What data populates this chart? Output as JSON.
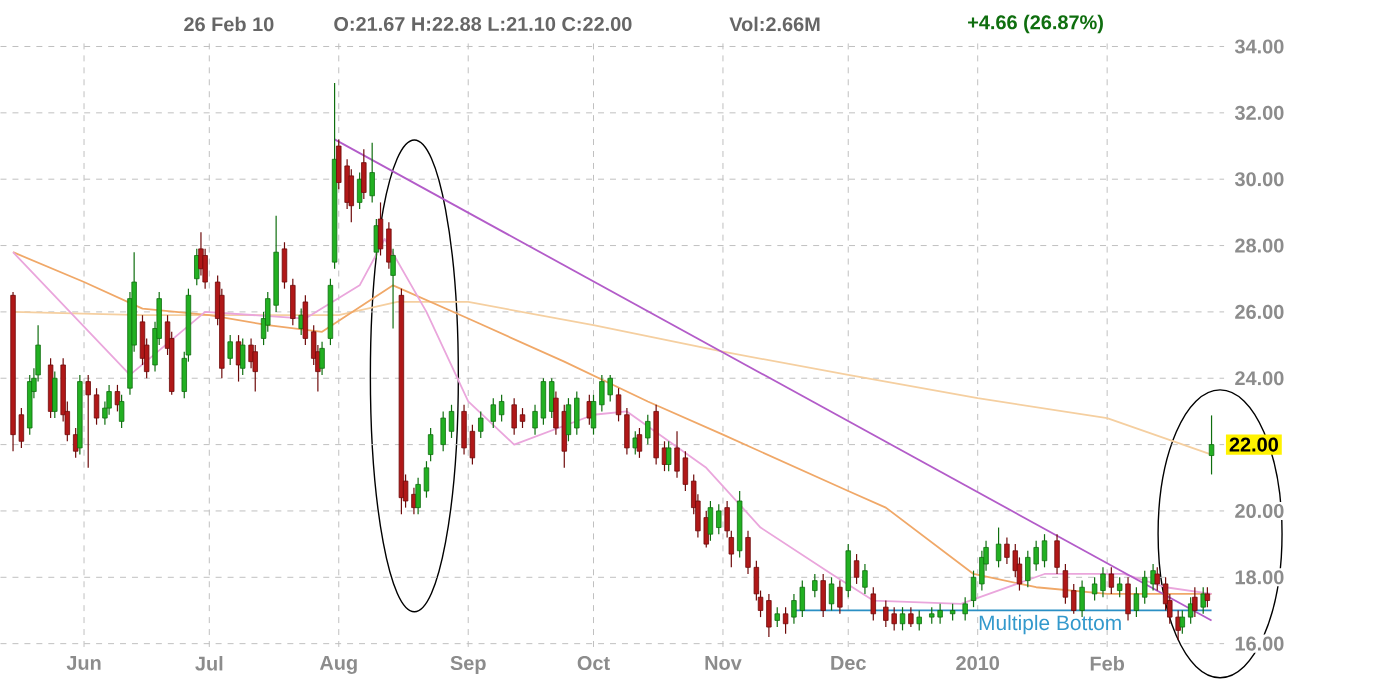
{
  "chart_data": {
    "type": "candlestick",
    "title": "26 Feb 10",
    "annotations": [
      "O:21.67 H:22.88 L:21.10 C:22.00",
      "Vol:2.66M",
      "+4.66 (26.87%)",
      {
        "text": "22.00",
        "x": "2010-02-26",
        "y": 22.0
      },
      {
        "text": "Multiple Bottom",
        "x": "2010-01-01",
        "y": 17.0
      }
    ],
    "x": [
      "2009-05-15",
      "2009-05-17",
      "2009-05-19",
      "2009-05-20",
      "2009-05-21",
      "2009-05-24",
      "2009-05-25",
      "2009-05-27",
      "2009-05-28",
      "2009-05-30",
      "2009-05-31",
      "2009-06-02",
      "2009-06-04",
      "2009-06-06",
      "2009-06-07",
      "2009-06-09",
      "2009-06-10",
      "2009-06-12",
      "2009-06-13",
      "2009-06-15",
      "2009-06-16",
      "2009-06-18",
      "2009-06-19",
      "2009-06-21",
      "2009-06-22",
      "2009-06-25",
      "2009-06-26",
      "2009-06-28",
      "2009-06-29",
      "2009-06-30",
      "2009-07-03",
      "2009-07-04",
      "2009-07-06",
      "2009-07-08",
      "2009-07-09",
      "2009-07-11",
      "2009-07-12",
      "2009-07-14",
      "2009-07-15",
      "2009-07-17",
      "2009-07-19",
      "2009-07-21",
      "2009-07-23",
      "2009-07-24",
      "2009-07-26",
      "2009-07-27",
      "2009-07-28",
      "2009-07-30",
      "2009-07-31",
      "2009-08-01",
      "2009-08-03",
      "2009-08-04",
      "2009-08-06",
      "2009-08-07",
      "2009-08-09",
      "2009-08-10",
      "2009-08-11",
      "2009-08-13",
      "2009-08-14",
      "2009-08-16",
      "2009-08-17",
      "2009-08-19",
      "2009-08-20",
      "2009-08-22",
      "2009-08-23",
      "2009-08-26",
      "2009-08-28",
      "2009-08-31",
      "2009-09-02",
      "2009-09-04",
      "2009-09-07",
      "2009-09-09",
      "2009-09-12",
      "2009-09-14",
      "2009-09-17",
      "2009-09-19",
      "2009-09-21",
      "2009-09-22",
      "2009-09-24",
      "2009-09-25",
      "2009-09-27",
      "2009-09-30",
      "2009-10-01",
      "2009-10-03",
      "2009-10-05",
      "2009-10-07",
      "2009-10-09",
      "2009-10-11",
      "2009-10-12",
      "2009-10-14",
      "2009-10-16",
      "2009-10-18",
      "2009-10-19",
      "2009-10-21",
      "2009-10-23",
      "2009-10-25",
      "2009-10-26",
      "2009-10-28",
      "2009-10-29",
      "2009-10-31",
      "2009-11-02",
      "2009-11-03",
      "2009-11-05",
      "2009-11-07",
      "2009-11-09",
      "2009-11-10",
      "2009-11-12",
      "2009-11-14",
      "2009-11-16",
      "2009-11-18",
      "2009-11-20",
      "2009-11-23",
      "2009-11-25",
      "2009-11-27",
      "2009-11-29",
      "2009-12-01",
      "2009-12-03",
      "2009-12-05",
      "2009-12-07",
      "2009-12-10",
      "2009-12-12",
      "2009-12-14",
      "2009-12-16",
      "2009-12-18",
      "2009-12-21",
      "2009-12-23",
      "2009-12-26",
      "2009-12-29",
      "2009-12-31",
      "2010-01-02",
      "2010-01-03",
      "2010-01-06",
      "2010-01-08",
      "2010-01-10",
      "2010-01-11",
      "2010-01-13",
      "2010-01-15",
      "2010-01-17",
      "2010-01-20",
      "2010-01-22",
      "2010-01-24",
      "2010-01-26",
      "2010-01-29",
      "2010-01-31",
      "2010-02-02",
      "2010-02-04",
      "2010-02-06",
      "2010-02-08",
      "2010-02-10",
      "2010-02-12",
      "2010-02-13",
      "2010-02-15",
      "2010-02-16",
      "2010-02-18",
      "2010-02-19",
      "2010-02-21",
      "2010-02-22",
      "2010-02-24",
      "2010-02-25",
      "2010-02-26"
    ],
    "ohlc": [
      [
        26.5,
        26.6,
        21.8,
        22.3
      ],
      [
        22.9,
        23.1,
        21.9,
        22.1
      ],
      [
        22.5,
        24.1,
        22.3,
        23.9
      ],
      [
        23.6,
        24.3,
        23.4,
        24.0
      ],
      [
        24.1,
        25.6,
        23.9,
        25.0
      ],
      [
        24.4,
        24.6,
        22.8,
        23.0
      ],
      [
        23.0,
        24.2,
        22.8,
        24.0
      ],
      [
        24.4,
        24.6,
        22.7,
        22.9
      ],
      [
        23.0,
        23.3,
        22.1,
        22.3
      ],
      [
        22.3,
        22.5,
        21.6,
        21.8
      ],
      [
        21.9,
        24.1,
        21.7,
        23.9
      ],
      [
        23.9,
        24.1,
        21.3,
        23.5
      ],
      [
        23.5,
        23.7,
        22.6,
        22.8
      ],
      [
        22.8,
        23.3,
        22.6,
        23.1
      ],
      [
        23.1,
        23.8,
        22.9,
        23.6
      ],
      [
        23.6,
        23.8,
        23.0,
        23.2
      ],
      [
        22.7,
        23.5,
        22.5,
        23.3
      ],
      [
        23.7,
        26.6,
        23.5,
        26.4
      ],
      [
        25.0,
        27.8,
        24.8,
        26.9
      ],
      [
        25.7,
        25.9,
        24.4,
        24.6
      ],
      [
        25.0,
        25.2,
        24.0,
        24.2
      ],
      [
        24.4,
        25.7,
        24.2,
        25.5
      ],
      [
        25.2,
        26.6,
        25.0,
        26.4
      ],
      [
        25.7,
        25.9,
        24.7,
        24.9
      ],
      [
        25.2,
        25.4,
        23.5,
        23.6
      ],
      [
        23.6,
        24.8,
        23.4,
        24.6
      ],
      [
        24.7,
        26.7,
        24.5,
        26.5
      ],
      [
        27.0,
        27.9,
        26.8,
        27.7
      ],
      [
        27.9,
        28.4,
        27.1,
        27.3
      ],
      [
        27.7,
        27.9,
        26.7,
        26.9
      ],
      [
        26.9,
        27.1,
        25.6,
        25.8
      ],
      [
        26.5,
        26.7,
        24.0,
        24.3
      ],
      [
        24.6,
        25.3,
        24.4,
        25.1
      ],
      [
        25.1,
        25.3,
        23.9,
        24.4
      ],
      [
        24.3,
        25.2,
        24.1,
        25.0
      ],
      [
        25.0,
        25.2,
        24.3,
        24.5
      ],
      [
        24.8,
        25.0,
        23.6,
        24.2
      ],
      [
        25.2,
        26.0,
        25.0,
        25.8
      ],
      [
        25.6,
        26.6,
        25.4,
        26.4
      ],
      [
        26.2,
        28.9,
        26.0,
        27.8
      ],
      [
        27.9,
        28.1,
        26.7,
        26.9
      ],
      [
        26.8,
        27.0,
        25.6,
        25.8
      ],
      [
        25.5,
        26.1,
        25.3,
        25.9
      ],
      [
        26.3,
        26.5,
        25.0,
        25.2
      ],
      [
        25.4,
        25.6,
        24.4,
        24.6
      ],
      [
        24.8,
        25.0,
        23.6,
        24.2
      ],
      [
        24.3,
        25.1,
        24.1,
        24.9
      ],
      [
        25.2,
        27.0,
        25.0,
        26.8
      ],
      [
        27.5,
        32.9,
        27.3,
        30.6
      ],
      [
        31.0,
        31.2,
        29.7,
        29.9
      ],
      [
        30.4,
        30.6,
        29.1,
        29.3
      ],
      [
        30.1,
        30.3,
        28.7,
        29.2
      ],
      [
        29.3,
        30.2,
        29.1,
        30.0
      ],
      [
        30.5,
        30.9,
        29.4,
        29.6
      ],
      [
        29.5,
        31.1,
        29.3,
        30.2
      ],
      [
        27.8,
        28.8,
        27.6,
        28.6
      ],
      [
        28.8,
        29.3,
        27.7,
        27.9
      ],
      [
        28.5,
        28.7,
        27.3,
        27.5
      ],
      [
        27.1,
        27.9,
        25.5,
        27.7
      ],
      [
        26.5,
        26.7,
        19.9,
        20.4
      ],
      [
        20.9,
        21.1,
        20.1,
        20.3
      ],
      [
        20.5,
        20.7,
        19.9,
        20.1
      ],
      [
        20.1,
        21.0,
        19.9,
        20.8
      ],
      [
        20.6,
        21.5,
        20.4,
        21.3
      ],
      [
        21.7,
        22.5,
        21.5,
        22.3
      ],
      [
        22.0,
        23.0,
        21.8,
        22.8
      ],
      [
        22.4,
        23.2,
        22.2,
        23.0
      ],
      [
        23.0,
        23.2,
        21.7,
        21.9
      ],
      [
        22.4,
        22.6,
        21.4,
        21.6
      ],
      [
        22.4,
        23.0,
        22.2,
        22.8
      ],
      [
        22.7,
        23.4,
        22.5,
        23.2
      ],
      [
        22.9,
        23.5,
        22.7,
        23.3
      ],
      [
        23.2,
        23.4,
        22.3,
        22.5
      ],
      [
        22.9,
        23.1,
        22.5,
        22.7
      ],
      [
        22.5,
        23.2,
        22.3,
        23.0
      ],
      [
        22.8,
        24.0,
        22.6,
        23.9
      ],
      [
        23.0,
        24.0,
        22.8,
        23.9
      ],
      [
        23.4,
        23.6,
        22.3,
        22.5
      ],
      [
        23.0,
        23.2,
        21.3,
        21.8
      ],
      [
        22.3,
        23.4,
        22.1,
        23.2
      ],
      [
        22.5,
        23.6,
        22.3,
        23.4
      ],
      [
        23.3,
        23.5,
        22.6,
        22.8
      ],
      [
        22.5,
        23.5,
        22.3,
        23.3
      ],
      [
        23.2,
        24.1,
        23.0,
        23.9
      ],
      [
        23.5,
        24.1,
        23.3,
        24.0
      ],
      [
        23.5,
        23.7,
        22.7,
        22.9
      ],
      [
        22.9,
        23.1,
        21.7,
        21.9
      ],
      [
        21.9,
        22.4,
        21.7,
        22.2
      ],
      [
        22.3,
        22.5,
        21.6,
        21.8
      ],
      [
        22.2,
        22.9,
        22.0,
        22.7
      ],
      [
        23.0,
        23.2,
        21.4,
        21.6
      ],
      [
        21.9,
        22.1,
        21.2,
        21.4
      ],
      [
        21.4,
        22.1,
        21.2,
        21.9
      ],
      [
        21.9,
        22.4,
        21.0,
        21.2
      ],
      [
        21.6,
        21.8,
        20.6,
        20.8
      ],
      [
        20.9,
        21.1,
        19.9,
        20.1
      ],
      [
        20.3,
        20.5,
        19.2,
        19.4
      ],
      [
        19.8,
        20.0,
        18.9,
        19.0
      ],
      [
        19.3,
        20.3,
        19.1,
        20.1
      ],
      [
        19.5,
        20.2,
        19.3,
        20.0
      ],
      [
        20.1,
        20.3,
        19.2,
        19.4
      ],
      [
        19.2,
        19.4,
        18.3,
        18.7
      ],
      [
        18.8,
        20.6,
        18.6,
        20.3
      ],
      [
        19.2,
        19.4,
        18.1,
        18.3
      ],
      [
        18.3,
        18.5,
        17.3,
        17.5
      ],
      [
        17.4,
        17.6,
        16.8,
        17.0
      ],
      [
        17.3,
        17.5,
        16.2,
        16.5
      ],
      [
        16.7,
        17.1,
        16.5,
        16.9
      ],
      [
        16.9,
        17.1,
        16.3,
        16.6
      ],
      [
        16.8,
        17.5,
        16.6,
        17.3
      ],
      [
        17.0,
        17.9,
        16.8,
        17.7
      ],
      [
        17.6,
        18.1,
        17.4,
        17.9
      ],
      [
        17.9,
        18.1,
        16.8,
        17.0
      ],
      [
        17.2,
        18.0,
        17.0,
        17.8
      ],
      [
        17.7,
        17.9,
        16.9,
        17.1
      ],
      [
        17.6,
        19.0,
        17.4,
        18.8
      ],
      [
        18.5,
        18.7,
        17.8,
        18.0
      ],
      [
        17.7,
        18.4,
        17.5,
        18.2
      ],
      [
        17.5,
        17.7,
        16.7,
        16.9
      ],
      [
        17.1,
        17.3,
        16.5,
        16.7
      ],
      [
        16.9,
        17.1,
        16.4,
        16.6
      ],
      [
        16.6,
        17.1,
        16.4,
        16.9
      ],
      [
        16.9,
        17.1,
        16.5,
        16.6
      ],
      [
        16.6,
        17.0,
        16.4,
        16.8
      ],
      [
        16.8,
        17.1,
        16.6,
        16.9
      ],
      [
        16.8,
        17.2,
        16.6,
        17.0
      ],
      [
        16.9,
        17.2,
        16.7,
        17.0
      ],
      [
        16.9,
        17.4,
        16.7,
        17.2
      ],
      [
        17.3,
        18.2,
        17.1,
        18.0
      ],
      [
        17.8,
        18.8,
        17.6,
        18.6
      ],
      [
        18.4,
        19.1,
        18.2,
        18.9
      ],
      [
        18.5,
        19.5,
        18.3,
        19.0
      ],
      [
        19.0,
        19.2,
        18.4,
        18.6
      ],
      [
        18.8,
        19.0,
        18.0,
        18.2
      ],
      [
        18.4,
        18.6,
        17.6,
        17.8
      ],
      [
        17.9,
        18.8,
        17.7,
        18.6
      ],
      [
        18.4,
        19.1,
        18.2,
        18.9
      ],
      [
        18.5,
        19.3,
        18.3,
        19.1
      ],
      [
        19.1,
        19.3,
        18.1,
        18.3
      ],
      [
        18.2,
        18.4,
        17.2,
        17.4
      ],
      [
        17.6,
        17.8,
        16.9,
        17.0
      ],
      [
        17.0,
        17.9,
        16.8,
        17.7
      ],
      [
        17.5,
        18.0,
        17.3,
        17.8
      ],
      [
        17.6,
        18.3,
        17.4,
        18.1
      ],
      [
        18.1,
        18.3,
        17.5,
        17.7
      ],
      [
        17.6,
        18.0,
        17.4,
        17.8
      ],
      [
        17.8,
        18.0,
        16.7,
        16.9
      ],
      [
        17.0,
        17.7,
        16.8,
        17.5
      ],
      [
        17.4,
        18.2,
        17.2,
        18.0
      ],
      [
        17.8,
        18.4,
        17.6,
        18.2
      ],
      [
        18.1,
        18.3,
        17.6,
        17.8
      ],
      [
        17.8,
        18.0,
        17.0,
        17.2
      ],
      [
        17.3,
        17.5,
        16.6,
        16.8
      ],
      [
        16.8,
        17.0,
        16.1,
        16.4
      ],
      [
        16.5,
        17.0,
        16.3,
        16.8
      ],
      [
        16.8,
        17.4,
        16.6,
        17.2
      ],
      [
        17.4,
        17.7,
        16.8,
        17.0
      ],
      [
        17.1,
        17.7,
        16.9,
        17.5
      ],
      [
        17.5,
        17.7,
        17.1,
        17.3
      ],
      [
        21.67,
        22.88,
        21.1,
        22.0
      ]
    ],
    "series": [
      {
        "type": "line",
        "color": "#f5cfa0",
        "x": [
          "2009-05-15",
          "2009-06-15",
          "2009-07-15",
          "2009-08-01",
          "2009-08-15",
          "2009-09-01",
          "2009-10-01",
          "2009-11-01",
          "2009-12-01",
          "2010-01-01",
          "2010-02-01",
          "2010-02-26"
        ],
        "values": [
          26.0,
          25.9,
          25.9,
          25.9,
          26.3,
          26.3,
          25.6,
          24.8,
          24.1,
          23.4,
          22.8,
          21.7
        ]
      },
      {
        "type": "line",
        "color": "#f0a868",
        "x": [
          "2009-05-15",
          "2009-06-01",
          "2009-06-15",
          "2009-07-01",
          "2009-07-15",
          "2009-07-28",
          "2009-08-14",
          "2009-09-01",
          "2009-09-24",
          "2009-10-14",
          "2009-11-01",
          "2009-12-01",
          "2009-12-10",
          "2009-12-31",
          "2010-01-15",
          "2010-02-01",
          "2010-02-26"
        ],
        "values": [
          27.8,
          26.9,
          26.1,
          25.9,
          25.6,
          25.4,
          26.8,
          25.8,
          24.5,
          23.3,
          22.3,
          20.6,
          20.1,
          18.1,
          17.7,
          17.5,
          17.5
        ]
      },
      {
        "type": "line",
        "color": "#eaa6dc",
        "x": [
          "2009-05-15",
          "2009-06-12",
          "2009-06-30",
          "2009-07-24",
          "2009-08-06",
          "2009-08-12",
          "2009-08-22",
          "2009-09-01",
          "2009-09-12",
          "2009-10-01",
          "2009-10-09",
          "2009-10-28",
          "2009-11-10",
          "2009-11-27",
          "2009-12-07",
          "2009-12-28",
          "2010-01-17",
          "2010-02-05",
          "2010-02-15",
          "2010-02-26"
        ],
        "values": [
          27.8,
          24.1,
          26.0,
          25.8,
          26.8,
          28.2,
          26.0,
          23.3,
          22.0,
          22.9,
          23.0,
          21.3,
          19.5,
          18.1,
          17.3,
          17.2,
          18.1,
          18.1,
          17.7,
          17.5
        ]
      },
      {
        "type": "line",
        "color": "#b35cc9",
        "x": [
          "2009-07-31",
          "2010-02-26"
        ],
        "values": [
          31.2,
          16.7
        ]
      },
      {
        "type": "line",
        "color": "#2b8fc4",
        "x": [
          "2009-11-18",
          "2010-02-26"
        ],
        "values": [
          17.0,
          17.0
        ]
      }
    ],
    "xlim": [
      "2009-05-12",
      "2010-03-01"
    ],
    "ylim": [
      15.9,
      34.1
    ],
    "xticks": [
      {
        "value": "2009-06-01",
        "label": "Jun"
      },
      {
        "value": "2009-07-01",
        "label": "Jul"
      },
      {
        "value": "2009-08-01",
        "label": "Aug"
      },
      {
        "value": "2009-09-01",
        "label": "Sep"
      },
      {
        "value": "2009-10-01",
        "label": "Oct"
      },
      {
        "value": "2009-11-01",
        "label": "Nov"
      },
      {
        "value": "2009-12-01",
        "label": "Dec"
      },
      {
        "value": "2010-01-01",
        "label": "2010"
      },
      {
        "value": "2010-02-01",
        "label": "Feb"
      }
    ],
    "yticks": [
      {
        "value": 16,
        "label": "16.00"
      },
      {
        "value": 18,
        "label": "18.00"
      },
      {
        "value": 20,
        "label": "20.00"
      },
      {
        "value": 22,
        "label": null
      },
      {
        "value": 24,
        "label": "24.00"
      },
      {
        "value": 26,
        "label": "26.00"
      },
      {
        "value": 28,
        "label": "28.00"
      },
      {
        "value": 30,
        "label": "30.00"
      },
      {
        "value": 32,
        "label": "32.00"
      },
      {
        "value": 34,
        "label": "34.00"
      }
    ],
    "grid": true
  }
}
